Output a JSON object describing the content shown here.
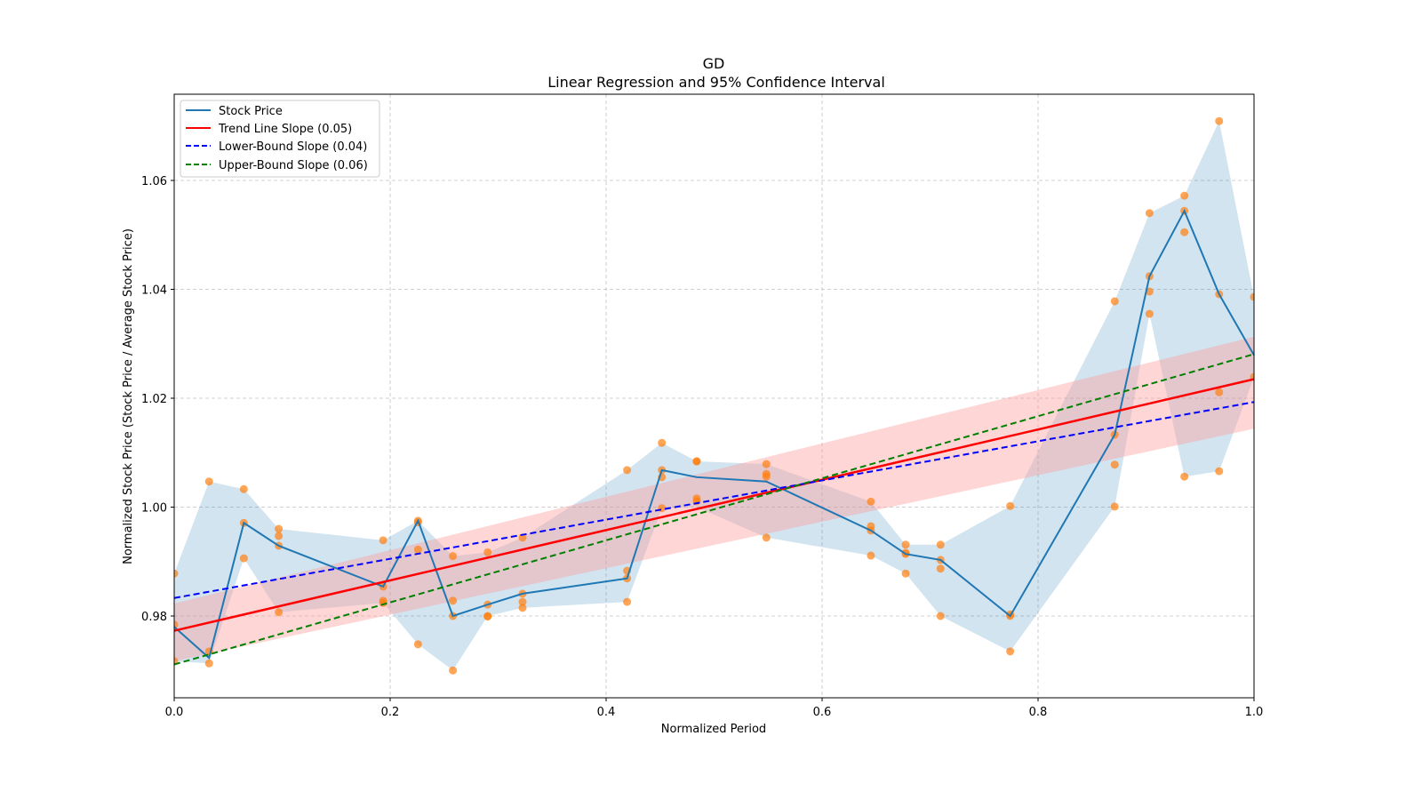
{
  "chart_data": {
    "type": "line",
    "title": "GD",
    "subtitle": "Linear Regression and 95% Confidence Interval",
    "xlabel": "Normalized Period",
    "ylabel": "Normalized Stock Price (Stock Price / Average Stock Price)",
    "xlim": [
      0.0,
      1.0
    ],
    "ylim": [
      0.965,
      1.076
    ],
    "xticks": [
      0.0,
      0.2,
      0.4,
      0.6,
      0.8,
      1.0
    ],
    "xtick_labels": [
      "0.0",
      "0.2",
      "0.4",
      "0.6",
      "0.8",
      "1.0"
    ],
    "yticks": [
      0.98,
      1.0,
      1.02,
      1.04,
      1.06
    ],
    "ytick_labels": [
      "0.98",
      "1.00",
      "1.02",
      "1.04",
      "1.06"
    ],
    "grid": true,
    "legend_position": "top-left",
    "legend": [
      {
        "label": "Stock Price",
        "color": "#1f77b4",
        "style": "solid"
      },
      {
        "label": "Trend Line Slope (0.05)",
        "color": "#ff0000",
        "style": "solid"
      },
      {
        "label": "Lower-Bound Slope (0.04)",
        "color": "#0000ff",
        "style": "dashed"
      },
      {
        "label": "Upper-Bound Slope (0.06)",
        "color": "#008000",
        "style": "dashed"
      }
    ],
    "colors": {
      "stock_line": "#1f77b4",
      "stock_band": "#1f77b4",
      "scatter": "#ff7f0e",
      "trend": "#ff0000",
      "trend_band": "#ff9999",
      "lower": "#0000ff",
      "upper": "#008000",
      "grid": "#b0b0b0"
    },
    "stock_series": {
      "x": [
        0.0,
        0.0323,
        0.0645,
        0.0968,
        0.1935,
        0.2258,
        0.2581,
        0.2903,
        0.3226,
        0.4194,
        0.4516,
        0.4839,
        0.5484,
        0.6452,
        0.6774,
        0.7097,
        0.7742,
        0.871,
        0.9032,
        0.9355,
        0.9677,
        1.0
      ],
      "mean": [
        0.978,
        0.9723,
        0.9971,
        0.9929,
        0.9854,
        0.9975,
        0.98,
        0.9821,
        0.9841,
        0.9869,
        1.0068,
        1.0055,
        1.0047,
        0.9957,
        0.9914,
        0.9903,
        0.98,
        1.0133,
        1.0424,
        1.0544,
        1.0391,
        1.0279
      ],
      "band_low": [
        0.9717,
        0.9713,
        0.9906,
        0.9807,
        0.9824,
        0.9748,
        0.97,
        0.98,
        0.9815,
        0.9826,
        0.9998,
        1.0,
        0.9944,
        0.9911,
        0.9878,
        0.98,
        0.9735,
        1.0001,
        1.0355,
        1.0056,
        1.0066,
        1.0239
      ],
      "band_high": [
        0.9878,
        1.0047,
        1.0033,
        0.996,
        0.9939,
        0.9975,
        0.991,
        0.9917,
        0.9944,
        1.0068,
        1.0118,
        1.0084,
        1.0079,
        1.001,
        0.9931,
        0.9931,
        1.0002,
        1.0378,
        1.054,
        1.0572,
        1.0709,
        1.0386
      ]
    },
    "scatter_points": {
      "x": [
        0.0,
        0.0,
        0.0,
        0.0323,
        0.0323,
        0.0323,
        0.0645,
        0.0645,
        0.0645,
        0.0968,
        0.0968,
        0.0968,
        0.0968,
        0.1935,
        0.1935,
        0.1935,
        0.1935,
        0.2258,
        0.2258,
        0.2258,
        0.2258,
        0.2581,
        0.2581,
        0.2581,
        0.2581,
        0.2903,
        0.2903,
        0.2903,
        0.2903,
        0.3226,
        0.3226,
        0.3226,
        0.3226,
        0.4194,
        0.4194,
        0.4194,
        0.4194,
        0.4516,
        0.4516,
        0.4516,
        0.4516,
        0.4839,
        0.4839,
        0.4839,
        0.4839,
        0.5484,
        0.5484,
        0.5484,
        0.5484,
        0.6452,
        0.6452,
        0.6452,
        0.6452,
        0.6774,
        0.6774,
        0.6774,
        0.6774,
        0.7097,
        0.7097,
        0.7097,
        0.7097,
        0.7742,
        0.7742,
        0.7742,
        0.7742,
        0.871,
        0.871,
        0.871,
        0.871,
        0.9032,
        0.9032,
        0.9032,
        0.9032,
        0.9355,
        0.9355,
        0.9355,
        0.9355,
        0.9677,
        0.9677,
        0.9677,
        0.9677,
        1.0,
        1.0
      ],
      "y": [
        0.9878,
        0.9784,
        0.9717,
        1.0047,
        0.9735,
        0.9713,
        1.0033,
        0.9971,
        0.9906,
        0.996,
        0.9947,
        0.9929,
        0.9807,
        0.9939,
        0.9854,
        0.9828,
        0.9824,
        0.9975,
        0.9972,
        0.9922,
        0.9748,
        0.991,
        0.9828,
        0.98,
        0.97,
        0.9917,
        0.9821,
        0.98,
        0.9799,
        0.9944,
        0.9841,
        0.9826,
        0.9815,
        1.0068,
        0.9883,
        0.9869,
        0.9826,
        1.0118,
        1.0068,
        1.0055,
        0.9998,
        1.0084,
        1.0084,
        1.0016,
        1.0011,
        1.0079,
        1.0061,
        1.0056,
        0.9944,
        1.001,
        0.9965,
        0.9957,
        0.9911,
        0.9931,
        0.9916,
        0.9914,
        0.9878,
        0.9931,
        0.9903,
        0.9887,
        0.98,
        1.0002,
        0.9803,
        0.98,
        0.9735,
        1.0378,
        1.0133,
        1.0078,
        1.0001,
        1.054,
        1.0424,
        1.0396,
        1.0355,
        1.0572,
        1.0544,
        1.0505,
        1.0056,
        1.0709,
        1.0391,
        1.0211,
        1.0066,
        1.0386,
        1.0239
      ]
    },
    "trend_line": {
      "x": [
        0.0,
        1.0
      ],
      "y": [
        0.9773,
        1.0235
      ]
    },
    "trend_band": {
      "x": [
        0.0,
        1.0
      ],
      "low": [
        0.9717,
        1.0144
      ],
      "high": [
        0.9823,
        1.0313
      ]
    },
    "lower_bound_line": {
      "x": [
        0.0,
        1.0
      ],
      "y": [
        0.9833,
        1.0193
      ]
    },
    "upper_bound_line": {
      "x": [
        0.0,
        1.0
      ],
      "y": [
        0.9711,
        1.0281
      ]
    }
  }
}
